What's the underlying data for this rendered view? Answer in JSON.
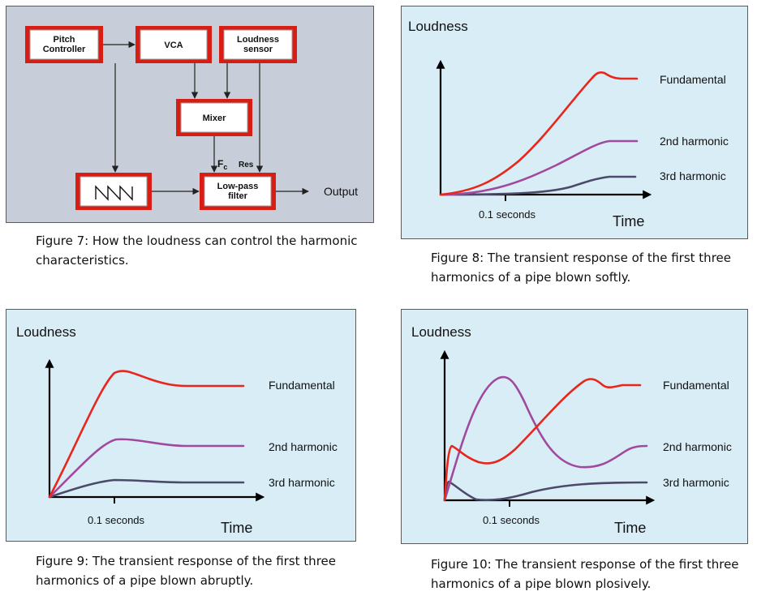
{
  "figure7": {
    "blocks": {
      "pitch": [
        "Pitch",
        "Controller"
      ],
      "vca": [
        "VCA"
      ],
      "loudness": [
        "Loudness",
        "sensor"
      ],
      "mixer": [
        "Mixer"
      ],
      "filter": [
        "Low-pass",
        "filter"
      ]
    },
    "fc_label": "F",
    "fc_sub": "c",
    "res_label": "Res",
    "output_label": "Output",
    "caption": [
      "Figure 7: How the loudness can control the harmonic",
      "characteristics."
    ]
  },
  "plots": {
    "y_title": "Loudness",
    "x_title": "Time",
    "tick": "0.1 seconds",
    "series": [
      "Fundamental",
      "2nd harmonic",
      "3rd harmonic"
    ],
    "colors": {
      "fundamental": "#e8261b",
      "second": "#a04a9e",
      "third": "#4c4a6a"
    }
  },
  "figure8": {
    "caption": [
      "Figure 8: The transient response of the first three",
      "harmonics of a pipe blown softly."
    ]
  },
  "figure9": {
    "caption": [
      "Figure 9: The transient response of the first three",
      "harmonics of a pipe blown abruptly."
    ]
  },
  "figure10": {
    "caption": [
      "Figure 10: The transient response of the first three",
      "harmonics of a pipe blown plosively."
    ]
  }
}
